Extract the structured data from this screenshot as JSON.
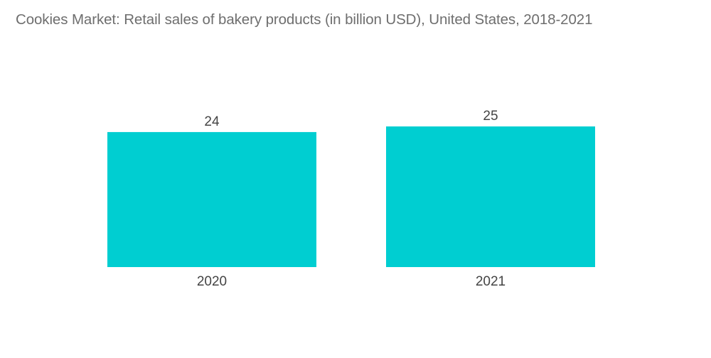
{
  "chart_data": {
    "type": "bar",
    "title": "Cookies Market: Retail sales of bakery products  (in billion USD), United States, 2018-2021",
    "categories": [
      "2020",
      "2021"
    ],
    "values": [
      24,
      25
    ],
    "value_labels": [
      "24",
      "25"
    ],
    "xlabel": "",
    "ylabel": "",
    "ylim": [
      0,
      25
    ],
    "grid": false,
    "legend": "none",
    "bar_color": "#00ced1"
  }
}
